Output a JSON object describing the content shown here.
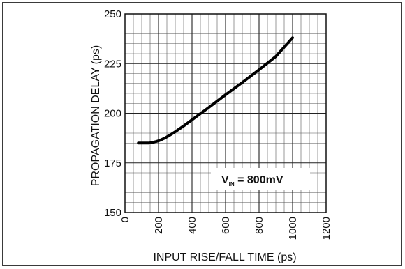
{
  "chart_data": {
    "type": "line",
    "title": "",
    "xlabel": "INPUT RISE/FALL TIME (ps)",
    "ylabel": "PROPAGATION DELAY (ps)",
    "xlim": [
      0,
      1200
    ],
    "ylim": [
      150,
      250
    ],
    "x_ticks": [
      "0",
      "200",
      "400",
      "600",
      "800",
      "1000",
      "1200"
    ],
    "y_ticks": [
      "150",
      "175",
      "200",
      "225",
      "250"
    ],
    "grid": true,
    "series": [
      {
        "x": [
          80,
          100,
          120,
          140,
          160,
          180,
          200,
          220,
          240,
          260,
          280,
          300,
          350,
          400,
          500,
          600,
          700,
          800,
          900,
          1000
        ],
        "y": [
          185,
          185,
          185,
          185,
          185.2,
          185.6,
          186.1,
          186.8,
          187.6,
          188.6,
          189.6,
          190.7,
          193.6,
          196.7,
          202.9,
          209.3,
          215.5,
          221.9,
          228.6,
          238
        ]
      }
    ],
    "annotations": [
      {
        "main": "V",
        "sub": "IN",
        "rest": " = 800mV"
      }
    ]
  }
}
